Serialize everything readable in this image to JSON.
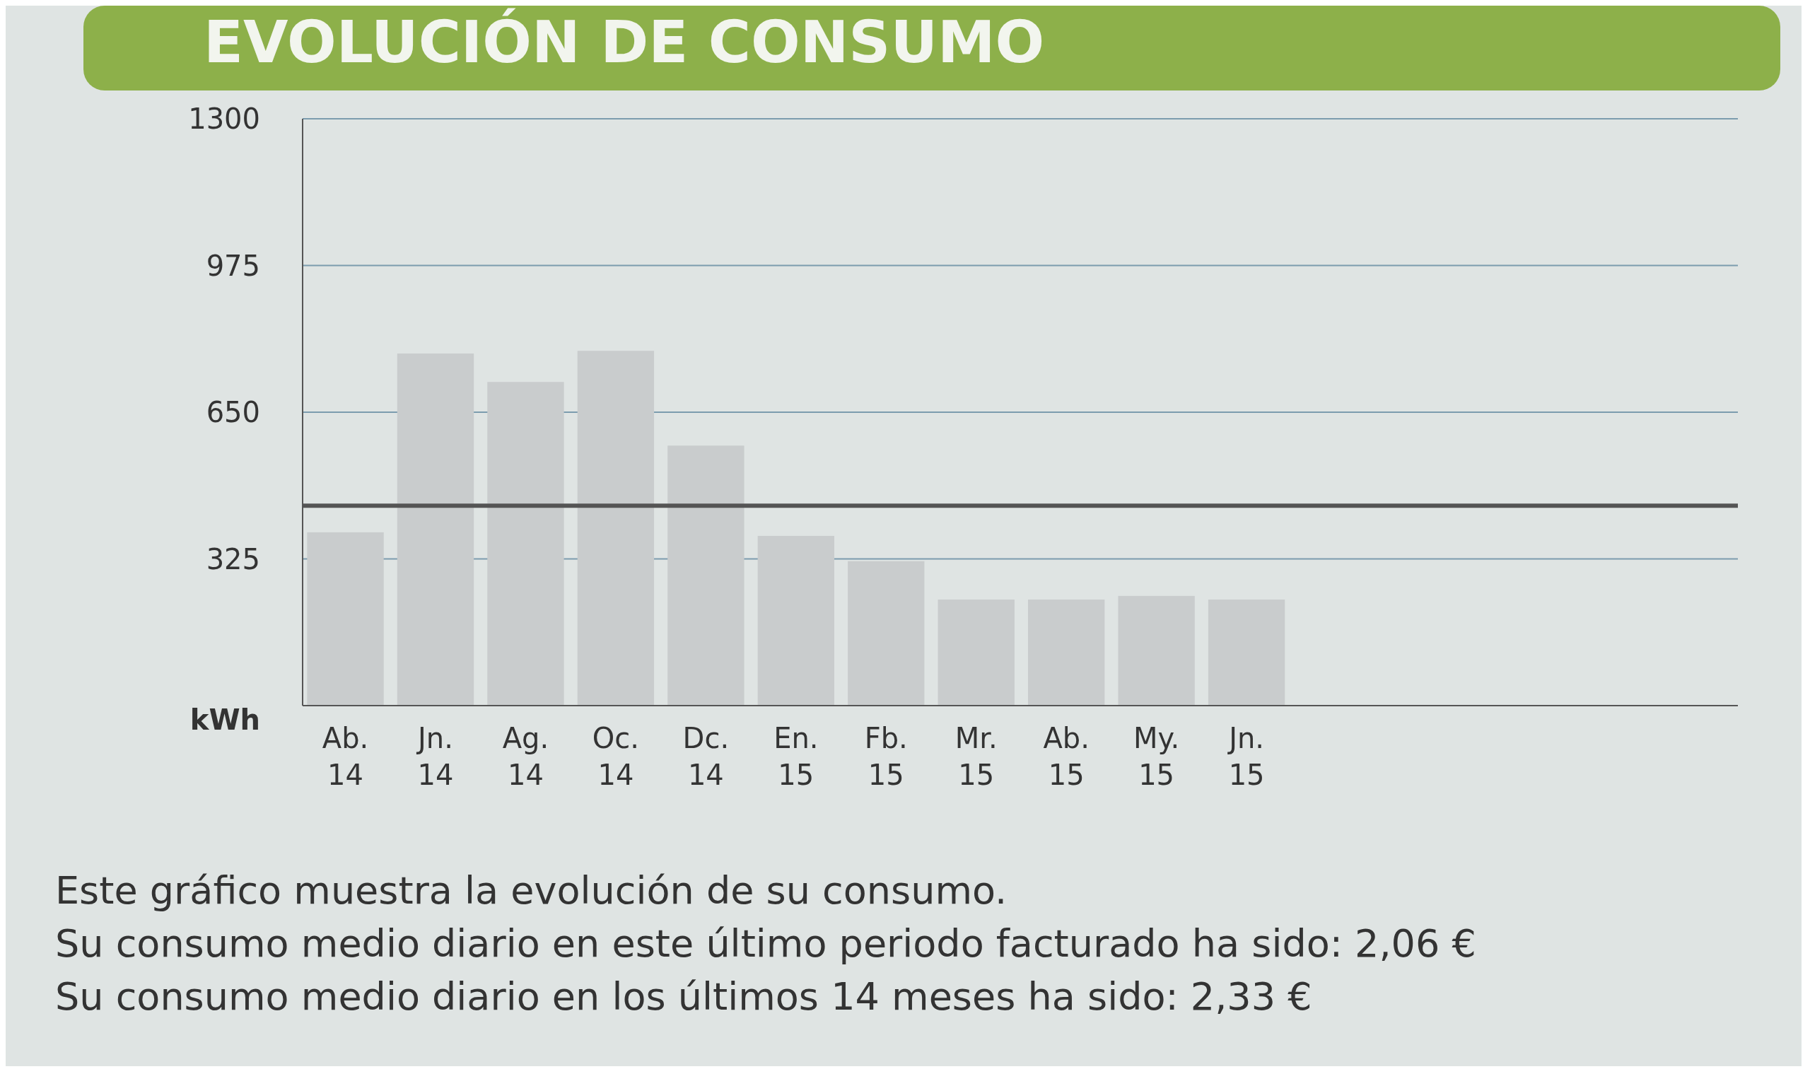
{
  "chart_data": {
    "type": "bar",
    "title": "EVOLUCIÓN DE CONSUMO",
    "ylabel": "kWh",
    "categories": [
      "Ab. 14",
      "Jn. 14",
      "Ag. 14",
      "Oc. 14",
      "Dc. 14",
      "En. 15",
      "Fb. 15",
      "Mr. 15",
      "Ab. 15",
      "My. 15",
      "Jn. 15"
    ],
    "values": [
      384,
      780,
      717,
      786,
      576,
      376,
      320,
      235,
      235,
      243,
      235
    ],
    "color": "#c9cccd",
    "ylim": [
      0,
      1300
    ],
    "yticks": [
      325,
      650,
      975,
      1300
    ],
    "grid": "y",
    "ref_lines": [
      {
        "axis": "y",
        "value": 443,
        "color": "#555555"
      }
    ],
    "annotations": [
      "Este gráfico muestra la evolución de su consumo.",
      "Su consumo medio diario en este último periodo facturado ha sido: 2,06 €",
      "Su consumo medio diario en los últimos 14 meses ha sido: 2,33 €"
    ]
  }
}
